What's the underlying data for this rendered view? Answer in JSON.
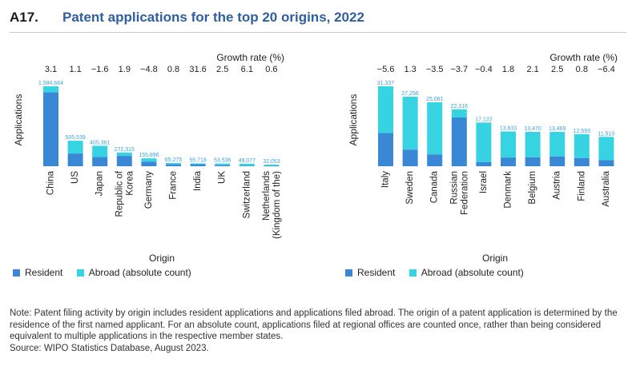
{
  "header": {
    "code": "A17.",
    "title": "Patent applications for the top 20 origins, 2022"
  },
  "colors": {
    "resident": "#3a87d6",
    "abroad": "#36d3e3",
    "title": "#2e5f9e",
    "value_label": "#3aa3d6"
  },
  "legend": {
    "resident": "Resident",
    "abroad": "Abroad (absolute count)"
  },
  "chart_data": [
    {
      "type": "bar",
      "stacked": true,
      "title": "",
      "xlabel": "Origin",
      "ylabel": "Applications",
      "growth_label": "Growth rate (%)",
      "categories": [
        "China",
        "US",
        "Japan",
        "Republic of Korea",
        "Germany",
        "France",
        "India",
        "UK",
        "Switzerland",
        "Netherlands (Kingdom of the)"
      ],
      "category_lines": [
        [
          "China"
        ],
        [
          "US"
        ],
        [
          "Japan"
        ],
        [
          "Republic of",
          "Korea"
        ],
        [
          "Germany"
        ],
        [
          "France"
        ],
        [
          "India"
        ],
        [
          "UK"
        ],
        [
          "Switzerland"
        ],
        [
          "Netherlands",
          "(Kingdom of the)"
        ]
      ],
      "totals": [
        1584664,
        505539,
        405361,
        272315,
        155896,
        65275,
        55718,
        53536,
        49077,
        32053
      ],
      "total_labels": [
        "1,584,664",
        "505,539",
        "405,361",
        "272,315",
        "155,896",
        "65,275",
        "55,718",
        "53,536",
        "49,077",
        "32,053"
      ],
      "growth": [
        "3.1",
        "1.1",
        "−1.6",
        "1.9",
        "−4.8",
        "0.8",
        "31.6",
        "2.5",
        "6.1",
        "0.6"
      ],
      "series": [
        {
          "name": "Resident",
          "values": [
            1464605,
            251560,
            181659,
            203917,
            89170,
            37273,
            38551,
            21091,
            9106,
            6624
          ]
        },
        {
          "name": "Abroad (absolute count)",
          "values": [
            120059,
            253979,
            223702,
            68398,
            66726,
            28002,
            17167,
            32445,
            39971,
            25429
          ]
        }
      ],
      "ylim": [
        0,
        1584664
      ],
      "legend_position": "bottom-left"
    },
    {
      "type": "bar",
      "stacked": true,
      "title": "",
      "xlabel": "Origin",
      "ylabel": "Applications",
      "growth_label": "Growth rate (%)",
      "categories": [
        "Italy",
        "Sweden",
        "Canada",
        "Russian Federation",
        "Israel",
        "Denmark",
        "Belgium",
        "Austria",
        "Finland",
        "Australia"
      ],
      "category_lines": [
        [
          "Italy"
        ],
        [
          "Sweden"
        ],
        [
          "Canada"
        ],
        [
          "Russian",
          "Federation"
        ],
        [
          "Israel"
        ],
        [
          "Denmark"
        ],
        [
          "Belgium"
        ],
        [
          "Austria"
        ],
        [
          "Finland"
        ],
        [
          "Australia"
        ]
      ],
      "totals": [
        31337,
        27256,
        25061,
        22316,
        17122,
        13633,
        13470,
        13469,
        12593,
        11510
      ],
      "total_labels": [
        "31,337",
        "27,256",
        "25,061",
        "22,316",
        "17,122",
        "13,633",
        "13,470",
        "13,469",
        "12,593",
        "11,510"
      ],
      "growth": [
        "−5.6",
        "1.3",
        "−3.5",
        "−3.7",
        "−0.4",
        "1.8",
        "2.1",
        "2.5",
        "0.8",
        "−6.4"
      ],
      "series": [
        {
          "name": "Resident",
          "values": [
            13000,
            6500,
            4600,
            19100,
            1600,
            3400,
            3500,
            3800,
            3200,
            2400
          ]
        },
        {
          "name": "Abroad (absolute count)",
          "values": [
            18337,
            20756,
            20461,
            3216,
            15522,
            10233,
            9970,
            9669,
            9393,
            9110
          ]
        }
      ],
      "ylim": [
        0,
        31337
      ],
      "legend_position": "bottom-left"
    }
  ],
  "note": {
    "text": "Note: Patent filing activity by origin includes resident applications and applications filed abroad. The origin of a patent application is determined by the residence of the first named applicant. For an absolute count, applications filed at regional offices are counted once, rather than being considered equivalent to multiple applications in the respective member states.",
    "source": "Source: WIPO Statistics Database, August 2023."
  }
}
